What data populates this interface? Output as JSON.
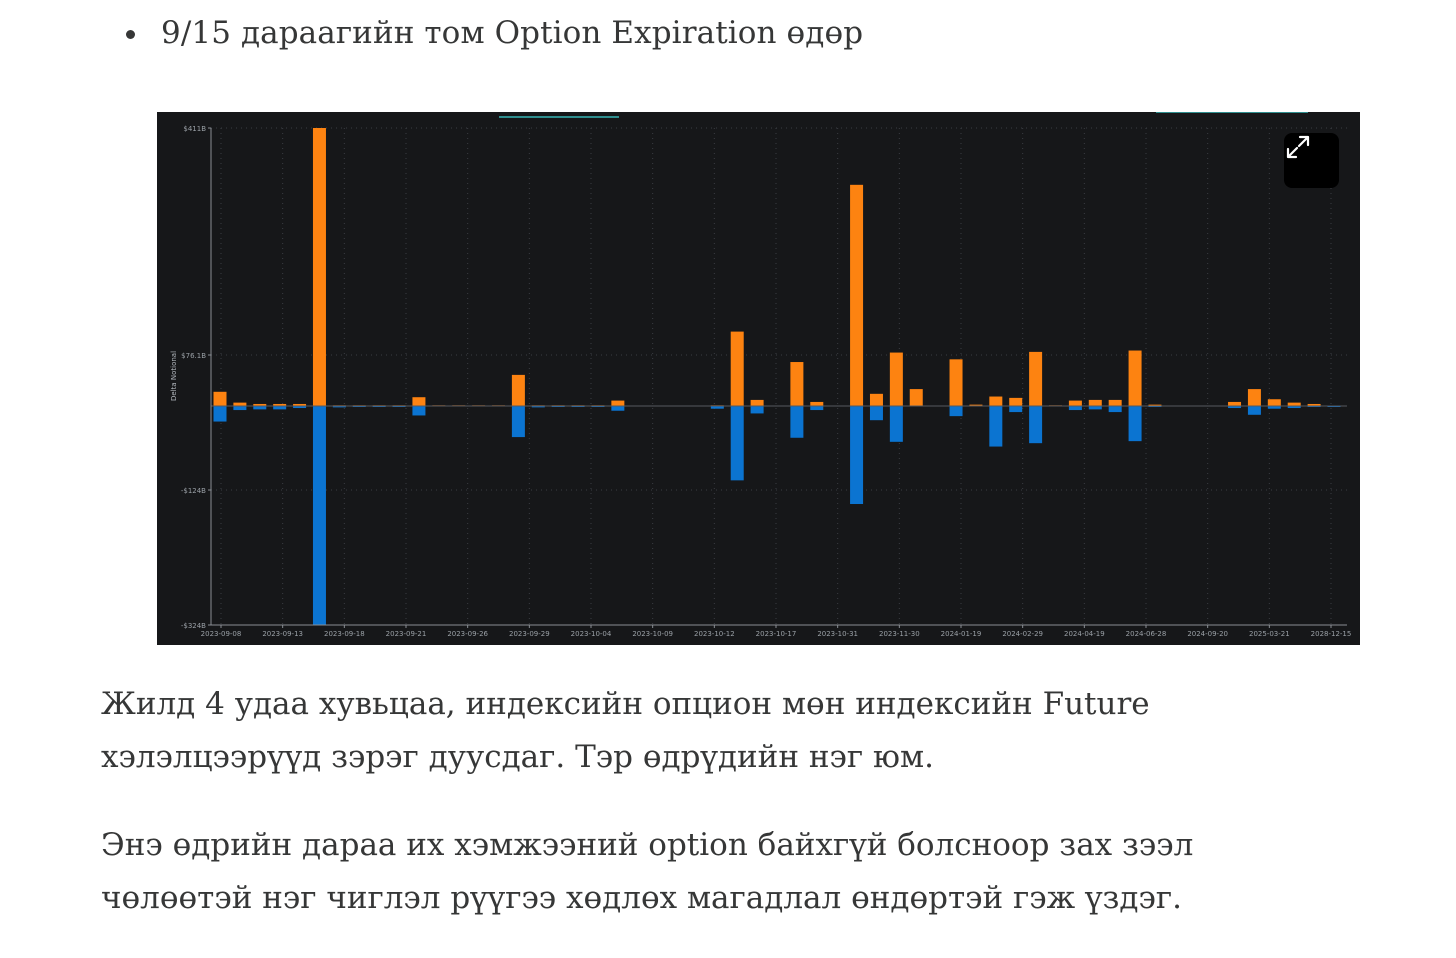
{
  "bullet": {
    "text": "9/15 дараагийн том Option Expiration өдөр"
  },
  "paragraphs": {
    "p1_line1": "Жилд 4 удаа хувьцаа, индексийн опцион мөн индексийн Future",
    "p1_line2": "хэлэлцээрүүд зэрэг дуусдаг. Тэр өдрүдийн нэг юм.",
    "p2_line1": "Энэ өдрийн дараа их хэмжээний option байхгүй болсноор зах зээл",
    "p2_line2": "чөлөөтэй нэг чиглэл рүүгээ хөдлөх магадлал өндөртэй гэж үздэг."
  },
  "expand_icon": "expand-arrows-icon",
  "colors": {
    "positive": "#fd8311",
    "negative": "#0b74d1",
    "background": "#161719",
    "text": "#363737"
  },
  "chart_data": {
    "type": "bar",
    "ylabel": "Delta Notional",
    "y_tick_labels": [
      "$411B",
      "$76.1B",
      "-$124B",
      "-$324B"
    ],
    "y_tick_values": [
      411,
      76.1,
      -124,
      -324
    ],
    "ylim": [
      -324,
      411
    ],
    "x_tick_labels": [
      "2023-09-08",
      "2023-09-13",
      "2023-09-18",
      "2023-09-21",
      "2023-09-26",
      "2023-09-29",
      "2023-10-04",
      "2023-10-09",
      "2023-10-12",
      "2023-10-17",
      "2023-10-31",
      "2023-11-30",
      "2024-01-19",
      "2024-02-29",
      "2024-04-19",
      "2024-06-28",
      "2024-09-20",
      "2025-03-21",
      "2028-12-15"
    ],
    "series": [
      {
        "values": [
          21,
          5,
          3,
          3,
          3,
          411,
          1,
          1,
          1,
          1,
          13,
          1,
          1,
          1,
          1,
          46,
          1,
          1,
          1,
          1,
          8,
          0,
          0,
          0,
          0,
          1,
          110,
          9,
          0,
          65,
          6,
          0,
          327,
          18,
          79,
          25,
          0,
          69,
          2,
          14,
          12,
          80,
          1,
          8,
          9,
          9,
          82,
          2,
          0,
          0,
          0,
          6,
          25,
          10,
          5,
          3,
          0
        ]
      },
      {
        "values": [
          -23,
          -6,
          -5,
          -5,
          -3,
          -324,
          -2,
          -1,
          -1,
          -1,
          -14,
          0,
          0,
          0,
          0,
          -46,
          -2,
          -1,
          -1,
          -1,
          -7,
          0,
          0,
          0,
          0,
          -4,
          -110,
          -11,
          0,
          -47,
          -6,
          0,
          -145,
          -21,
          -53,
          0,
          0,
          -15,
          0,
          -60,
          -9,
          -55,
          0,
          -6,
          -5,
          -9,
          -52,
          -1,
          0,
          0,
          0,
          -3,
          -13,
          -4,
          -3,
          -1,
          -1
        ]
      }
    ]
  }
}
